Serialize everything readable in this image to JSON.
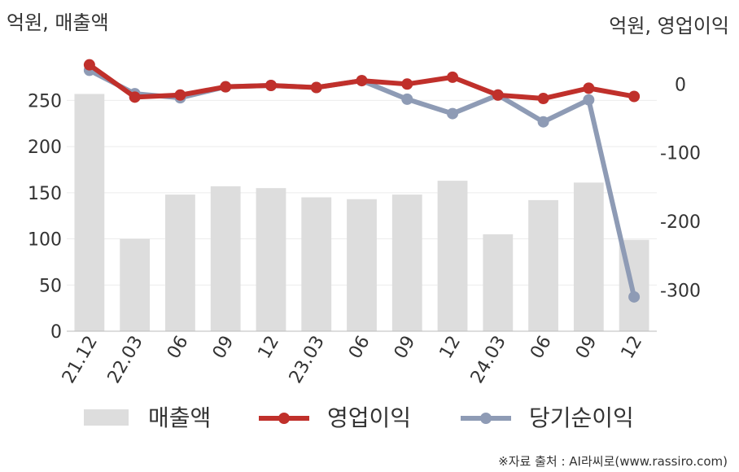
{
  "chart_data": {
    "type": "bar+line",
    "categories": [
      "21.12",
      "22.03",
      "06",
      "09",
      "12",
      "23.03",
      "06",
      "09",
      "12",
      "24.03",
      "06",
      "09",
      "12"
    ],
    "left_axis": {
      "title": "억원, 매출액",
      "ylim": [
        0,
        290
      ],
      "ticks": [
        0,
        50,
        100,
        150,
        200,
        250
      ]
    },
    "right_axis": {
      "title": "억원, 영업이익",
      "ylim": [
        -360,
        30
      ],
      "ticks": [
        0,
        -100,
        -200,
        -300
      ]
    },
    "series": [
      {
        "name": "매출액",
        "kind": "bar",
        "axis": "left",
        "color": "#dddddd",
        "values": [
          257,
          100,
          148,
          157,
          155,
          145,
          143,
          148,
          163,
          105,
          142,
          161,
          99
        ]
      },
      {
        "name": "영업이익",
        "kind": "line",
        "axis": "right",
        "color": "#c0302b",
        "values": [
          28,
          -19,
          -16,
          -4,
          -2,
          -5,
          5,
          0,
          10,
          -16,
          -21,
          -6,
          -18
        ]
      },
      {
        "name": "당기순이익",
        "kind": "line",
        "axis": "right",
        "color": "#8e9bb5",
        "values": [
          20,
          -14,
          -20,
          -4,
          -2,
          -5,
          5,
          -22,
          -43,
          -16,
          -55,
          -23,
          -310
        ]
      }
    ],
    "grid": true,
    "legend": "bottom"
  },
  "source_note": "※자료 출처 : AI라씨로(www.rassiro.com)"
}
